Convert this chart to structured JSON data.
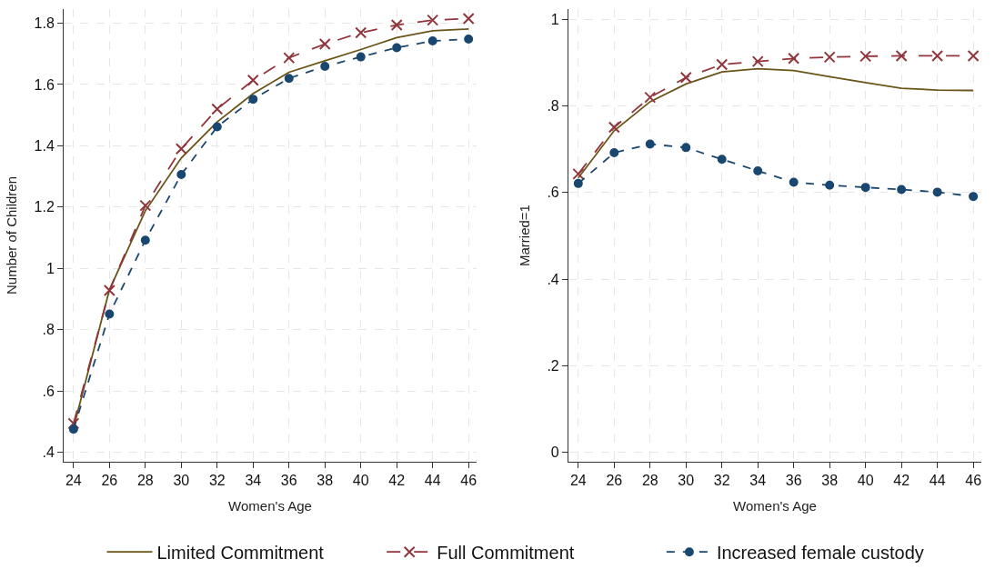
{
  "chart_data": [
    {
      "type": "line",
      "xlabel": "Women's Age",
      "ylabel": "Number of Children",
      "x": [
        24,
        26,
        28,
        30,
        32,
        34,
        36,
        38,
        40,
        42,
        44,
        46
      ],
      "xlim": [
        23.45,
        46.45
      ],
      "xticks": [
        24,
        26,
        28,
        30,
        32,
        34,
        36,
        38,
        40,
        42,
        44,
        46
      ],
      "ylim": [
        0.369,
        1.846
      ],
      "yticks": [
        {
          "value": 0.4,
          "label": ".4"
        },
        {
          "value": 0.6,
          "label": ".6"
        },
        {
          "value": 0.8,
          "label": ".8"
        },
        1,
        1.2,
        1.4,
        1.6,
        1.8
      ],
      "grid": true,
      "legend": "bottom",
      "series": [
        {
          "name": "Limited Commitment",
          "color": "#6b5418",
          "marker": "none",
          "line_style": "solid",
          "values": [
            0.48,
            0.93,
            1.188,
            1.36,
            1.478,
            1.57,
            1.64,
            1.677,
            1.714,
            1.753,
            1.775,
            1.781
          ]
        },
        {
          "name": "Full Commitment",
          "color": "#90353b",
          "marker": "cross",
          "line_style": "dashed",
          "values": [
            0.494,
            0.928,
            1.205,
            1.39,
            1.52,
            1.614,
            1.687,
            1.732,
            1.769,
            1.794,
            1.81,
            1.815
          ]
        },
        {
          "name": "Increased female custody",
          "color": "#1a476f",
          "marker": "circle",
          "line_style": "dotted",
          "values": [
            0.475,
            0.851,
            1.092,
            1.306,
            1.462,
            1.552,
            1.62,
            1.659,
            1.69,
            1.72,
            1.742,
            1.748
          ]
        }
      ]
    },
    {
      "type": "line",
      "xlabel": "Women's Age",
      "ylabel": "Married=1",
      "x": [
        24,
        26,
        28,
        30,
        32,
        34,
        36,
        38,
        40,
        42,
        44,
        46
      ],
      "xlim": [
        23.45,
        46.45
      ],
      "xticks": [
        24,
        26,
        28,
        30,
        32,
        34,
        36,
        38,
        40,
        42,
        44,
        46
      ],
      "ylim": [
        -0.022,
        1.024
      ],
      "yticks": [
        0,
        {
          "value": 0.2,
          "label": ".2"
        },
        {
          "value": 0.4,
          "label": ".4"
        },
        {
          "value": 0.6,
          "label": ".6"
        },
        {
          "value": 0.8,
          "label": ".8"
        },
        1
      ],
      "grid": true,
      "series": [
        {
          "color": "#6b5418",
          "marker": "none",
          "line_style": "solid",
          "values": [
            0.634,
            0.743,
            0.81,
            0.851,
            0.879,
            0.886,
            0.882,
            0.868,
            0.854,
            0.841,
            0.837,
            0.836
          ]
        },
        {
          "color": "#90353b",
          "marker": "cross",
          "line_style": "dashed",
          "values": [
            0.643,
            0.751,
            0.82,
            0.866,
            0.896,
            0.903,
            0.91,
            0.913,
            0.915,
            0.916,
            0.916,
            0.916
          ]
        },
        {
          "color": "#1a476f",
          "marker": "circle",
          "line_style": "dotted",
          "values": [
            0.621,
            0.692,
            0.712,
            0.704,
            0.677,
            0.65,
            0.624,
            0.617,
            0.612,
            0.607,
            0.601,
            0.591
          ]
        }
      ]
    }
  ]
}
